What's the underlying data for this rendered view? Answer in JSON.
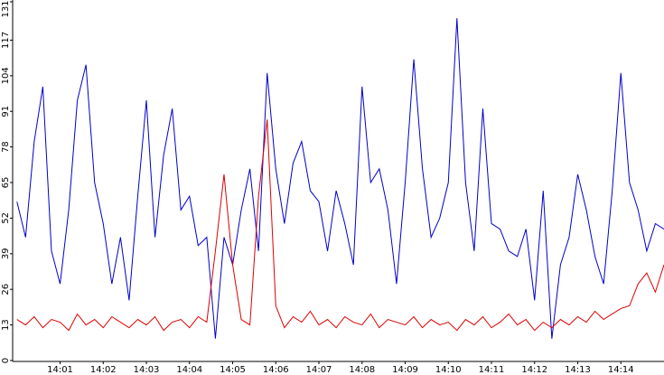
{
  "chart_data": {
    "type": "line",
    "x": [
      840,
      840.2,
      840.4,
      840.6,
      840.8,
      841,
      841.2,
      841.4,
      841.6,
      841.8,
      842,
      842.2,
      842.4,
      842.6,
      842.8,
      843,
      843.2,
      843.4,
      843.6,
      843.8,
      844,
      844.2,
      844.4,
      844.6,
      844.8,
      845,
      845.2,
      845.4,
      845.6,
      845.8,
      846,
      846.2,
      846.4,
      846.6,
      846.8,
      847,
      847.2,
      847.4,
      847.6,
      847.8,
      848,
      848.2,
      848.4,
      848.6,
      848.8,
      849,
      849.2,
      849.4,
      849.6,
      849.8,
      850,
      850.2,
      850.4,
      850.6,
      850.8,
      851,
      851.2,
      851.4,
      851.6,
      851.8,
      852,
      852.2,
      852.4,
      852.6,
      852.8,
      853,
      853.2,
      853.4,
      853.6,
      853.8,
      854,
      854.2,
      854.4,
      854.6,
      854.8,
      855
    ],
    "series": [
      {
        "color": "#0000cc",
        "values": [
          58,
          45,
          80,
          100,
          40,
          28,
          55,
          95,
          108,
          65,
          50,
          28,
          45,
          22,
          60,
          95,
          45,
          75,
          92,
          55,
          60,
          42,
          45,
          8,
          45,
          35,
          55,
          70,
          40,
          105,
          70,
          50,
          72,
          80,
          62,
          58,
          40,
          62,
          50,
          35,
          100,
          65,
          70,
          55,
          28,
          65,
          110,
          70,
          45,
          52,
          65,
          125,
          65,
          40,
          92,
          50,
          48,
          40,
          38,
          48,
          22,
          62,
          8,
          35,
          45,
          68,
          55,
          38,
          28,
          62,
          105,
          65,
          55,
          40,
          50,
          48
        ]
      },
      {
        "color": "#dd0000",
        "values": [
          15,
          13,
          16,
          12,
          15,
          14,
          11,
          17,
          13,
          15,
          12,
          16,
          14,
          12,
          15,
          13,
          16,
          11,
          14,
          15,
          12,
          16,
          14,
          40,
          68,
          35,
          15,
          13,
          60,
          88,
          20,
          12,
          16,
          14,
          18,
          13,
          15,
          12,
          16,
          14,
          13,
          17,
          12,
          15,
          14,
          13,
          16,
          12,
          15,
          13,
          14,
          11,
          15,
          13,
          16,
          12,
          14,
          17,
          13,
          15,
          11,
          14,
          12,
          15,
          13,
          16,
          14,
          18,
          15,
          17,
          19,
          20,
          28,
          32,
          25,
          35
        ]
      }
    ],
    "xlim": [
      839.9,
      855
    ],
    "xticks": [
      {
        "value": 841,
        "label": "14:01"
      },
      {
        "value": 842,
        "label": "14:02"
      },
      {
        "value": 843,
        "label": "14:03"
      },
      {
        "value": 844,
        "label": "14:04"
      },
      {
        "value": 845,
        "label": "14:05"
      },
      {
        "value": 846,
        "label": "14:06"
      },
      {
        "value": 847,
        "label": "14:07"
      },
      {
        "value": 848,
        "label": "14:08"
      },
      {
        "value": 849,
        "label": "14:09"
      },
      {
        "value": 850,
        "label": "14:10"
      },
      {
        "value": 851,
        "label": "14:11"
      },
      {
        "value": 852,
        "label": "14:12"
      },
      {
        "value": 853,
        "label": "14:13"
      },
      {
        "value": 854,
        "label": "14:14"
      }
    ],
    "ylim": [
      0,
      131
    ],
    "yticks": [
      0,
      13,
      26,
      39,
      52,
      65,
      78,
      91,
      104,
      117,
      131
    ]
  }
}
